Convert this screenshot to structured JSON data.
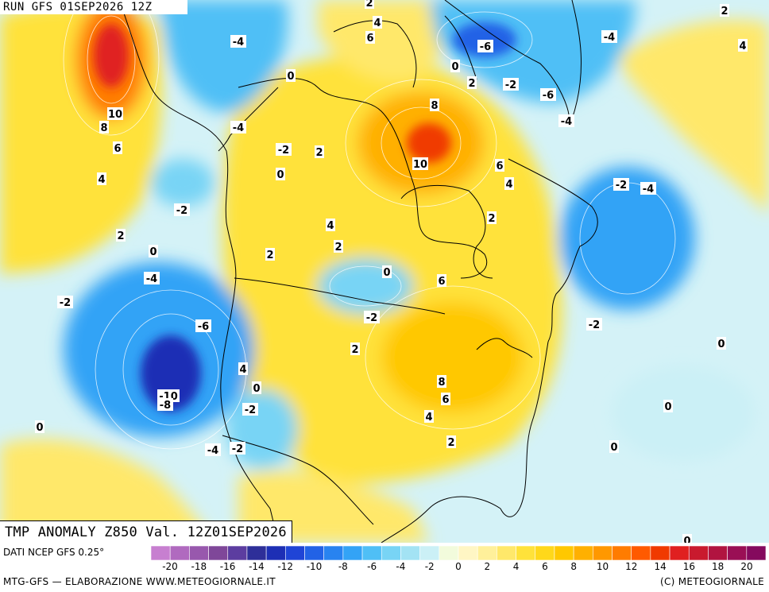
{
  "header": {
    "run_title": "RUN GFS 01SEP2026 12Z",
    "field_title": "TMP ANOMALY Z850 Val. 12Z01SEP2026"
  },
  "legend": {
    "source": "DATI NCEP GFS 0.25°",
    "ticks": [
      "-20",
      "-18",
      "-16",
      "-14",
      "-12",
      "-10",
      "-8",
      "-6",
      "-4",
      "-2",
      "0",
      "2",
      "4",
      "6",
      "8",
      "10",
      "12",
      "14",
      "16",
      "18",
      "20"
    ],
    "colors": [
      "#c77fd0",
      "#b06abf",
      "#9858ad",
      "#7f4799",
      "#5c3da0",
      "#2e2f99",
      "#1d2fb5",
      "#1f44d6",
      "#2262e6",
      "#2883f0",
      "#33a3f6",
      "#4fbff6",
      "#78d4f5",
      "#a3e3f4",
      "#cbf0f6",
      "#f2fbdc",
      "#fff6c4",
      "#fff09a",
      "#ffe86a",
      "#ffe23a",
      "#ffd81a",
      "#ffc800",
      "#ffb000",
      "#ff9800",
      "#ff7c00",
      "#ff5a00",
      "#f03a00",
      "#e02020",
      "#c91a2e",
      "#b11440",
      "#9a0f55",
      "#850a5e"
    ],
    "footer_left": "MTG-GFS — ELABORAZIONE WWW.METEOGIORNALE.IT",
    "footer_right": "(C) METEOGIORNALE"
  },
  "map": {
    "field": "850 hPa temperature anomaly",
    "unit": "°C",
    "background_color": "#d4f2f7",
    "contour_labels": [
      "2",
      "4",
      "6",
      "-4",
      "2",
      "4",
      "0",
      "-6",
      "-2",
      "2",
      "-6",
      "-4",
      "10",
      "8",
      "0",
      "6",
      "-4",
      "8",
      "-4",
      "-2",
      "2",
      "4",
      "0",
      "10",
      "6",
      "-2",
      "-4",
      "4",
      "-2",
      "2",
      "4",
      "2",
      "0",
      "2",
      "-4",
      "2",
      "0",
      "6",
      "-2",
      "-2",
      "-6",
      "2",
      "-2",
      "0",
      "4",
      "-10",
      "-8",
      "8",
      "0",
      "-2",
      "6",
      "0",
      "4",
      "2",
      "-4",
      "-2",
      "0",
      "0",
      "0"
    ]
  }
}
